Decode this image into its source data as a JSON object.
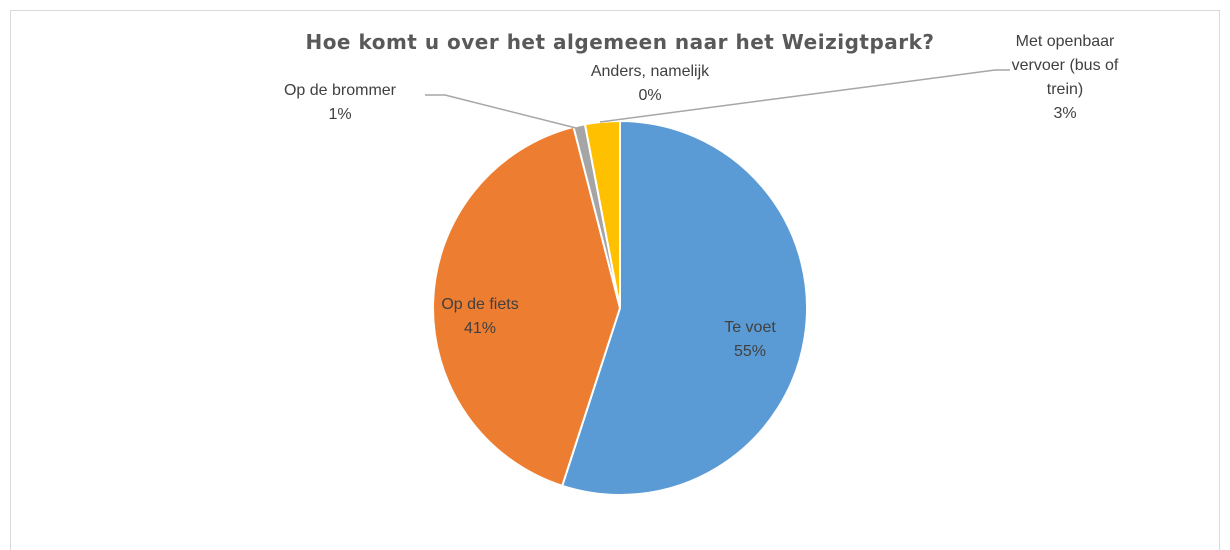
{
  "chart_data": {
    "type": "pie",
    "title": "Hoe komt u over het algemeen naar het Weizigtpark?",
    "categories": [
      "Te voet",
      "Op de fiets",
      "Op de brommer",
      "Met openbaar vervoer (bus of trein)",
      "Anders, namelijk"
    ],
    "values": [
      55,
      41,
      1,
      3,
      0
    ],
    "value_labels": [
      "55%",
      "41%",
      "1%",
      "3%",
      "0%"
    ],
    "colors": [
      "#5b9bd5",
      "#ed7d31",
      "#a5a5a5",
      "#ffc000",
      "#4472c4"
    ]
  }
}
